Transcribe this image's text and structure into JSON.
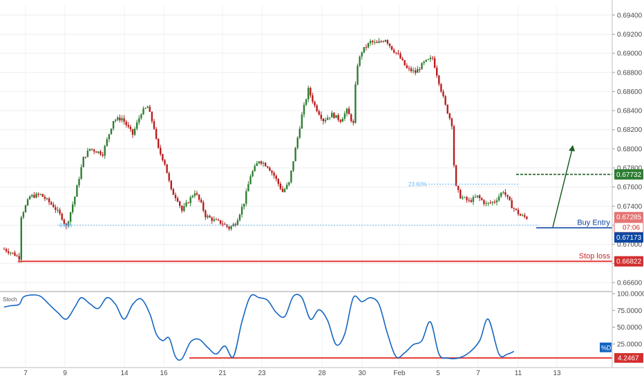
{
  "chart_data": [
    {
      "type": "candlestick",
      "x_ticks": [
        "7",
        "9",
        "14",
        "16",
        "21",
        "23",
        "28",
        "30",
        "Feb",
        "5",
        "7",
        "11",
        "13"
      ],
      "y_ticks": [
        "0.66600",
        "0.66800",
        "0.67000",
        "0.67200",
        "0.67400",
        "0.67600",
        "0.67800",
        "0.68000",
        "0.68200",
        "0.68400",
        "0.68600",
        "0.68800",
        "0.69000",
        "0.69200",
        "0.69400"
      ],
      "ylim": [
        0.6652,
        0.695
      ],
      "grid": true,
      "up_color": "#2e7d32",
      "down_color": "#b71c1c",
      "close_series": [
        {
          "x": 0.0,
          "y": 0.6695
        },
        {
          "x": 0.9,
          "y": 0.669
        },
        {
          "x": 1.4,
          "y": 0.6686
        },
        {
          "x": 1.6,
          "y": 0.673
        },
        {
          "x": 2.4,
          "y": 0.675
        },
        {
          "x": 3.4,
          "y": 0.6752
        },
        {
          "x": 4.6,
          "y": 0.674
        },
        {
          "x": 5.4,
          "y": 0.6728
        },
        {
          "x": 5.8,
          "y": 0.6718
        },
        {
          "x": 6.6,
          "y": 0.675
        },
        {
          "x": 7.4,
          "y": 0.679
        },
        {
          "x": 8.0,
          "y": 0.68
        },
        {
          "x": 9.2,
          "y": 0.6795
        },
        {
          "x": 10.2,
          "y": 0.683
        },
        {
          "x": 11.0,
          "y": 0.6832
        },
        {
          "x": 12.0,
          "y": 0.6815
        },
        {
          "x": 12.8,
          "y": 0.6838
        },
        {
          "x": 13.4,
          "y": 0.6844
        },
        {
          "x": 14.0,
          "y": 0.6822
        },
        {
          "x": 14.3,
          "y": 0.6802
        },
        {
          "x": 15.0,
          "y": 0.6785
        },
        {
          "x": 15.6,
          "y": 0.6756
        },
        {
          "x": 16.2,
          "y": 0.6747
        },
        {
          "x": 16.6,
          "y": 0.6735
        },
        {
          "x": 17.2,
          "y": 0.6745
        },
        {
          "x": 17.8,
          "y": 0.6755
        },
        {
          "x": 18.4,
          "y": 0.6742
        },
        {
          "x": 18.8,
          "y": 0.673
        },
        {
          "x": 19.6,
          "y": 0.6725
        },
        {
          "x": 20.4,
          "y": 0.6722
        },
        {
          "x": 21.0,
          "y": 0.6717
        },
        {
          "x": 21.6,
          "y": 0.6722
        },
        {
          "x": 22.4,
          "y": 0.6744
        },
        {
          "x": 23.0,
          "y": 0.6772
        },
        {
          "x": 23.8,
          "y": 0.6788
        },
        {
          "x": 24.6,
          "y": 0.6782
        },
        {
          "x": 25.2,
          "y": 0.6772
        },
        {
          "x": 26.0,
          "y": 0.6755
        },
        {
          "x": 26.6,
          "y": 0.6764
        },
        {
          "x": 27.2,
          "y": 0.68
        },
        {
          "x": 27.8,
          "y": 0.6835
        },
        {
          "x": 28.4,
          "y": 0.6862
        },
        {
          "x": 29.0,
          "y": 0.6845
        },
        {
          "x": 29.8,
          "y": 0.683
        },
        {
          "x": 30.6,
          "y": 0.6836
        },
        {
          "x": 31.4,
          "y": 0.683
        },
        {
          "x": 32.0,
          "y": 0.684
        },
        {
          "x": 32.6,
          "y": 0.6826
        },
        {
          "x": 32.9,
          "y": 0.6885
        },
        {
          "x": 33.4,
          "y": 0.6902
        },
        {
          "x": 34.2,
          "y": 0.6912
        },
        {
          "x": 34.8,
          "y": 0.691
        },
        {
          "x": 35.6,
          "y": 0.6915
        },
        {
          "x": 36.2,
          "y": 0.6905
        },
        {
          "x": 36.8,
          "y": 0.6898
        },
        {
          "x": 37.6,
          "y": 0.6884
        },
        {
          "x": 38.4,
          "y": 0.688
        },
        {
          "x": 39.2,
          "y": 0.689
        },
        {
          "x": 40.0,
          "y": 0.6895
        },
        {
          "x": 40.6,
          "y": 0.687
        },
        {
          "x": 41.2,
          "y": 0.6845
        },
        {
          "x": 41.8,
          "y": 0.6826
        },
        {
          "x": 42.1,
          "y": 0.6762
        },
        {
          "x": 42.6,
          "y": 0.675
        },
        {
          "x": 43.4,
          "y": 0.6745
        },
        {
          "x": 44.2,
          "y": 0.675
        },
        {
          "x": 45.0,
          "y": 0.6742
        },
        {
          "x": 45.8,
          "y": 0.6745
        },
        {
          "x": 46.6,
          "y": 0.6756
        },
        {
          "x": 47.4,
          "y": 0.674
        },
        {
          "x": 48.2,
          "y": 0.673
        },
        {
          "x": 48.8,
          "y": 0.6728
        }
      ],
      "overlays": {
        "fib_label_top": "23.60%",
        "fib_label_bottom": "0.0%",
        "fib_top_value": 0.6763,
        "fib_bottom_value": 0.672,
        "take_profit": 0.67732,
        "entry_level": 0.67173,
        "current_price": 0.67285,
        "stop_loss": 0.66822,
        "buy_entry_label": "Buy Entry",
        "stop_loss_label": "Stop loss",
        "entry_color": "#0d47a1",
        "target_color": "#1b5e20",
        "stop_color": "#e53935"
      },
      "price_tags": {
        "take_profit": "0.67732",
        "current": "0.67285",
        "countdown": "07:06",
        "entry": "0.67173",
        "stop_loss": "0.66822"
      }
    },
    {
      "type": "line",
      "title": "Stoch",
      "y_ticks": [
        "100.0000",
        "75.0000",
        "50.0000",
        "25.0000"
      ],
      "ylim": [
        0,
        100
      ],
      "series_tag": "%D",
      "current_value": "4.2467",
      "oversold_level": 4.2467,
      "line_color": "#1565c0",
      "level_color": "#e53935",
      "series": [
        {
          "x": 0.0,
          "y": 80
        },
        {
          "x": 0.6,
          "y": 82
        },
        {
          "x": 1.4,
          "y": 84
        },
        {
          "x": 1.8,
          "y": 95
        },
        {
          "x": 2.6,
          "y": 98
        },
        {
          "x": 3.4,
          "y": 96
        },
        {
          "x": 4.2,
          "y": 84
        },
        {
          "x": 5.0,
          "y": 72
        },
        {
          "x": 5.8,
          "y": 62
        },
        {
          "x": 6.6,
          "y": 80
        },
        {
          "x": 7.2,
          "y": 94
        },
        {
          "x": 8.0,
          "y": 85
        },
        {
          "x": 8.8,
          "y": 78
        },
        {
          "x": 9.6,
          "y": 94
        },
        {
          "x": 10.4,
          "y": 84
        },
        {
          "x": 11.2,
          "y": 62
        },
        {
          "x": 12.0,
          "y": 84
        },
        {
          "x": 12.8,
          "y": 92
        },
        {
          "x": 13.6,
          "y": 70
        },
        {
          "x": 14.2,
          "y": 40
        },
        {
          "x": 14.8,
          "y": 30
        },
        {
          "x": 15.4,
          "y": 34
        },
        {
          "x": 16.0,
          "y": 6
        },
        {
          "x": 16.6,
          "y": 3
        },
        {
          "x": 17.4,
          "y": 28
        },
        {
          "x": 18.2,
          "y": 32
        },
        {
          "x": 19.0,
          "y": 20
        },
        {
          "x": 19.8,
          "y": 10
        },
        {
          "x": 20.6,
          "y": 22
        },
        {
          "x": 21.4,
          "y": 6
        },
        {
          "x": 22.2,
          "y": 58
        },
        {
          "x": 23.0,
          "y": 96
        },
        {
          "x": 23.8,
          "y": 94
        },
        {
          "x": 24.6,
          "y": 90
        },
        {
          "x": 25.4,
          "y": 72
        },
        {
          "x": 26.2,
          "y": 66
        },
        {
          "x": 27.0,
          "y": 96
        },
        {
          "x": 27.8,
          "y": 94
        },
        {
          "x": 28.6,
          "y": 62
        },
        {
          "x": 29.4,
          "y": 76
        },
        {
          "x": 30.2,
          "y": 60
        },
        {
          "x": 31.0,
          "y": 24
        },
        {
          "x": 31.8,
          "y": 40
        },
        {
          "x": 32.6,
          "y": 94
        },
        {
          "x": 33.4,
          "y": 88
        },
        {
          "x": 34.2,
          "y": 94
        },
        {
          "x": 35.0,
          "y": 84
        },
        {
          "x": 35.8,
          "y": 40
        },
        {
          "x": 36.6,
          "y": 6
        },
        {
          "x": 37.4,
          "y": 12
        },
        {
          "x": 38.2,
          "y": 24
        },
        {
          "x": 39.0,
          "y": 30
        },
        {
          "x": 39.8,
          "y": 58
        },
        {
          "x": 40.6,
          "y": 10
        },
        {
          "x": 41.4,
          "y": 4
        },
        {
          "x": 42.4,
          "y": 4
        },
        {
          "x": 43.4,
          "y": 12
        },
        {
          "x": 44.4,
          "y": 30
        },
        {
          "x": 45.2,
          "y": 62
        },
        {
          "x": 46.2,
          "y": 10
        },
        {
          "x": 47.0,
          "y": 10
        },
        {
          "x": 47.6,
          "y": 14
        }
      ]
    }
  ]
}
